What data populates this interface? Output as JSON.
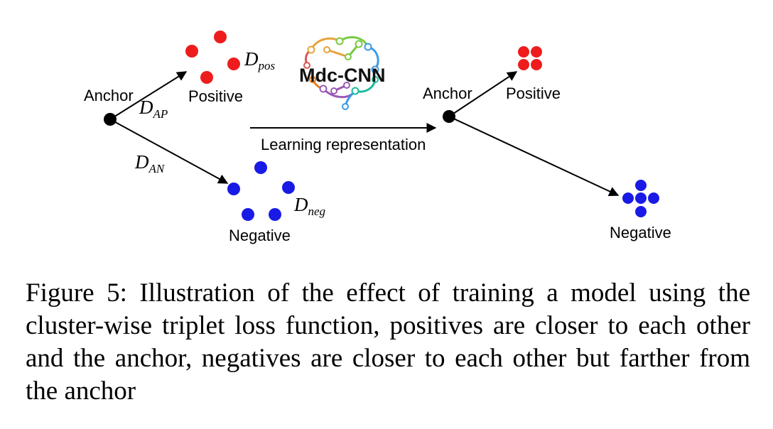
{
  "left": {
    "anchor_label": "Anchor",
    "positive_label": "Positive",
    "negative_label": "Negative",
    "d_ap": {
      "base": "D",
      "sub": "AP"
    },
    "d_an": {
      "base": "D",
      "sub": "AN"
    },
    "d_pos": {
      "base": "D",
      "sub": "pos"
    },
    "d_neg": {
      "base": "D",
      "sub": "neg"
    }
  },
  "middle": {
    "logo_text": "Mdc-CNN",
    "arrow_label": "Learning representation"
  },
  "right": {
    "anchor_label": "Anchor",
    "positive_label": "Positive",
    "negative_label": "Negative"
  },
  "colors": {
    "positive": "#ee1c1c",
    "negative": "#1a1ae6",
    "anchor": "#000000"
  },
  "caption": "Figure 5: Illustration of the effect of training a model using the cluster-wise triplet loss function, positives are closer to each other and the anchor, negatives are closer to each other but farther from the anchor"
}
